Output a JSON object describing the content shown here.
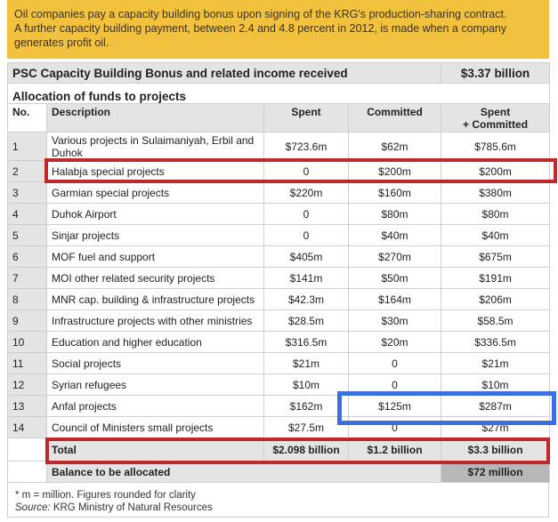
{
  "intro": {
    "line1": "Oil companies pay a capacity building bonus upon signing of the KRG's production-sharing contract.",
    "line2": "A further capacity building payment, between 2.4 and 4.8 percent in 2012, is made when a company generates profit oil."
  },
  "psc": {
    "label": "PSC Capacity Building Bonus and related income received",
    "value": "$3.37 billion"
  },
  "allocation_title": "Allocation of funds to projects",
  "headers": {
    "no": "No.",
    "description": "Description",
    "spent": "Spent",
    "committed": "Committed",
    "total_line1": "Spent",
    "total_line2": "+ Committed"
  },
  "rows": [
    {
      "no": "1",
      "description": "Various projects in Sulaimaniyah, Erbil and Duhok",
      "spent": "$723.6m",
      "committed": "$62m",
      "total": "$785.6m"
    },
    {
      "no": "2",
      "description": "Halabja special projects",
      "spent": "0",
      "committed": "$200m",
      "total": "$200m"
    },
    {
      "no": "3",
      "description": "Garmian special projects",
      "spent": "$220m",
      "committed": "$160m",
      "total": "$380m"
    },
    {
      "no": "4",
      "description": "Duhok Airport",
      "spent": "0",
      "committed": "$80m",
      "total": "$80m"
    },
    {
      "no": "5",
      "description": "Sinjar projects",
      "spent": "0",
      "committed": "$40m",
      "total": "$40m"
    },
    {
      "no": "6",
      "description": "MOF fuel and support",
      "spent": "$405m",
      "committed": "$270m",
      "total": "$675m"
    },
    {
      "no": "7",
      "description": "MOI other related security projects",
      "spent": "$141m",
      "committed": "$50m",
      "total": "$191m"
    },
    {
      "no": "8",
      "description": "MNR cap. building & infrastructure projects",
      "spent": "$42.3m",
      "committed": "$164m",
      "total": "$206m"
    },
    {
      "no": "9",
      "description": "Infrastructure projects with other ministries",
      "spent": "$28.5m",
      "committed": "$30m",
      "total": "$58.5m"
    },
    {
      "no": "10",
      "description": "Education and higher education",
      "spent": "$316.5m",
      "committed": "$20m",
      "total": "$336.5m"
    },
    {
      "no": "11",
      "description": "Social projects",
      "spent": "$21m",
      "committed": "0",
      "total": "$21m"
    },
    {
      "no": "12",
      "description": "Syrian refugees",
      "spent": "$10m",
      "committed": "0",
      "total": "$10m"
    },
    {
      "no": "13",
      "description": "Anfal projects",
      "spent": "$162m",
      "committed": "$125m",
      "total": "$287m"
    },
    {
      "no": "14",
      "description": "Council of Ministers small projects",
      "spent": "$27.5m",
      "committed": "0",
      "total": "$27m"
    }
  ],
  "total": {
    "label": "Total",
    "spent": "$2.098 billion",
    "committed": "$1.2 billion",
    "total": "$3.3 billion"
  },
  "balance": {
    "label": "Balance to be allocated",
    "value": "$72 million"
  },
  "footnote": {
    "note": "* m = million. Figures rounded for clarity",
    "source_label": "Source:",
    "source": " KRG Ministry of Natural Resources"
  },
  "highlight_colors": {
    "red": "#c0282d",
    "blue": "#3b6fe0"
  }
}
